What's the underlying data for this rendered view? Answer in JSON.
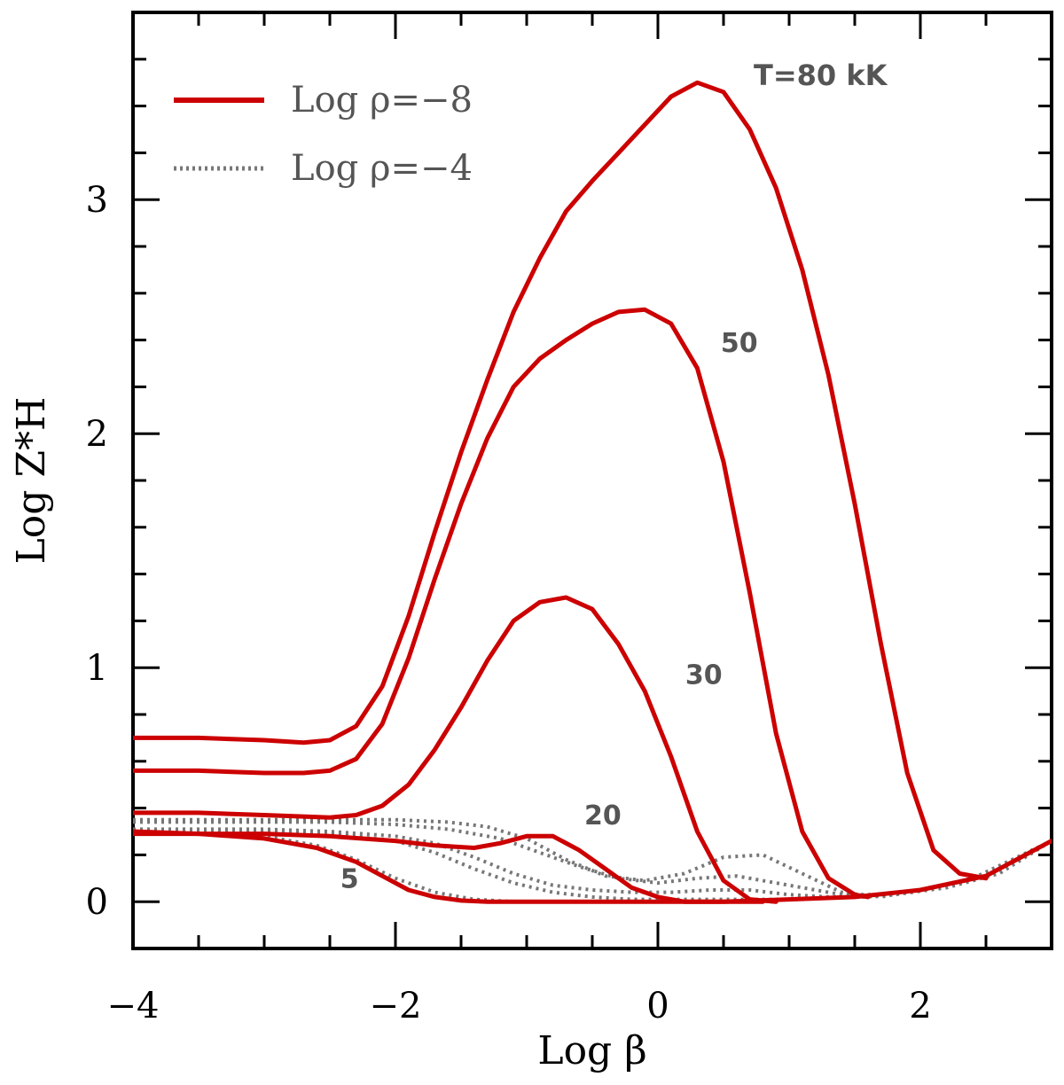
{
  "chart_data": {
    "type": "line",
    "title": "",
    "annotation": "T=80 kK",
    "xlabel": "Log β",
    "ylabel": "Log Z*H",
    "xlim": [
      -4,
      3
    ],
    "ylim": [
      -0.2,
      3.8
    ],
    "xticks": [
      -4,
      -2,
      0,
      2
    ],
    "xtick_labels": [
      "−4",
      "−2",
      "0",
      "2"
    ],
    "yticks": [
      0,
      1,
      2,
      3
    ],
    "ytick_labels": [
      "0",
      "1",
      "2",
      "3"
    ],
    "grid": false,
    "legend_position": "top-left",
    "legend": [
      {
        "label": "Log ρ=−8",
        "style": "solid",
        "color": "#cc0000"
      },
      {
        "label": "Log ρ=−4",
        "style": "dotted",
        "color": "#777777"
      }
    ],
    "curve_labels": [
      {
        "text": "50",
        "x": 0.62,
        "y": 2.35
      },
      {
        "text": "30",
        "x": 0.35,
        "y": 0.93
      },
      {
        "text": "20",
        "x": -0.42,
        "y": 0.33
      },
      {
        "text": "5",
        "x": -2.35,
        "y": 0.06
      }
    ],
    "series": [
      {
        "name": "Log ρ=−8, T=80 kK",
        "style": "solid",
        "color": "#cc0000",
        "x": [
          -4.0,
          -3.5,
          -3.0,
          -2.7,
          -2.5,
          -2.3,
          -2.1,
          -1.9,
          -1.7,
          -1.5,
          -1.3,
          -1.1,
          -0.9,
          -0.7,
          -0.5,
          -0.3,
          -0.1,
          0.1,
          0.3,
          0.5,
          0.7,
          0.9,
          1.1,
          1.3,
          1.5,
          1.7,
          1.9,
          2.1,
          2.3,
          2.5
        ],
        "y": [
          0.7,
          0.7,
          0.69,
          0.68,
          0.69,
          0.75,
          0.92,
          1.22,
          1.58,
          1.92,
          2.23,
          2.52,
          2.75,
          2.95,
          3.08,
          3.2,
          3.32,
          3.44,
          3.5,
          3.46,
          3.3,
          3.05,
          2.7,
          2.25,
          1.7,
          1.1,
          0.55,
          0.22,
          0.12,
          0.1
        ]
      },
      {
        "name": "Log ρ=−8, T=50 kK",
        "style": "solid",
        "color": "#cc0000",
        "x": [
          -4.0,
          -3.5,
          -3.0,
          -2.7,
          -2.5,
          -2.3,
          -2.1,
          -1.9,
          -1.7,
          -1.5,
          -1.3,
          -1.1,
          -0.9,
          -0.7,
          -0.5,
          -0.3,
          -0.1,
          0.1,
          0.3,
          0.5,
          0.7,
          0.9,
          1.1,
          1.3,
          1.5,
          1.6
        ],
        "y": [
          0.56,
          0.56,
          0.55,
          0.55,
          0.56,
          0.61,
          0.76,
          1.04,
          1.38,
          1.7,
          1.98,
          2.2,
          2.32,
          2.4,
          2.47,
          2.52,
          2.53,
          2.47,
          2.28,
          1.88,
          1.32,
          0.72,
          0.3,
          0.1,
          0.03,
          0.02
        ]
      },
      {
        "name": "Log ρ=−8, T=30 kK",
        "style": "solid",
        "color": "#cc0000",
        "x": [
          -4.0,
          -3.5,
          -3.0,
          -2.5,
          -2.3,
          -2.1,
          -1.9,
          -1.7,
          -1.5,
          -1.3,
          -1.1,
          -0.9,
          -0.7,
          -0.5,
          -0.3,
          -0.1,
          0.1,
          0.3,
          0.5,
          0.7,
          0.9
        ],
        "y": [
          0.38,
          0.38,
          0.37,
          0.36,
          0.37,
          0.41,
          0.5,
          0.65,
          0.83,
          1.03,
          1.2,
          1.28,
          1.3,
          1.25,
          1.1,
          0.9,
          0.62,
          0.3,
          0.09,
          0.01,
          0.0
        ]
      },
      {
        "name": "Log ρ=−8, T=20 kK",
        "style": "solid",
        "color": "#cc0000",
        "x": [
          -4.0,
          -3.5,
          -3.0,
          -2.5,
          -2.0,
          -1.7,
          -1.4,
          -1.2,
          -1.0,
          -0.8,
          -0.6,
          -0.4,
          -0.2,
          0.0,
          0.2,
          0.4,
          0.6,
          0.8
        ],
        "y": [
          0.29,
          0.29,
          0.29,
          0.28,
          0.26,
          0.24,
          0.23,
          0.25,
          0.28,
          0.28,
          0.22,
          0.14,
          0.06,
          0.02,
          0.0,
          0.0,
          0.0,
          0.0
        ]
      },
      {
        "name": "Log ρ=−8, T=5 kK",
        "style": "solid",
        "color": "#cc0000",
        "x": [
          -4.0,
          -3.5,
          -3.0,
          -2.6,
          -2.3,
          -2.1,
          -1.9,
          -1.7,
          -1.5,
          -1.3,
          -1.1,
          -0.8,
          -0.5,
          0.0,
          0.5,
          1.0,
          1.5,
          2.0,
          2.5,
          3.0
        ],
        "y": [
          0.3,
          0.29,
          0.27,
          0.23,
          0.17,
          0.11,
          0.05,
          0.02,
          0.005,
          0.0,
          0.0,
          0.0,
          0.0,
          0.0,
          0.0,
          0.01,
          0.02,
          0.05,
          0.11,
          0.26
        ]
      },
      {
        "name": "Log ρ=−4, curve 1",
        "style": "dotted",
        "color": "#777777",
        "x": [
          -4.0,
          -3.0,
          -2.5,
          -2.0,
          -1.6,
          -1.2,
          -0.9,
          -0.6,
          -0.3,
          0.0,
          0.3,
          0.6,
          1.0,
          1.4,
          1.8,
          2.2,
          2.6,
          3.0
        ],
        "y": [
          0.34,
          0.34,
          0.34,
          0.33,
          0.31,
          0.27,
          0.21,
          0.15,
          0.1,
          0.08,
          0.1,
          0.11,
          0.07,
          0.03,
          0.03,
          0.06,
          0.12,
          0.26
        ]
      },
      {
        "name": "Log ρ=−4, curve 2",
        "style": "dotted",
        "color": "#777777",
        "x": [
          -4.0,
          -3.0,
          -2.5,
          -2.0,
          -1.6,
          -1.3,
          -1.0,
          -0.7,
          -0.4,
          -0.1,
          0.2,
          0.5,
          0.8,
          1.1,
          1.4,
          1.7,
          2.0,
          2.4,
          3.0
        ],
        "y": [
          0.35,
          0.35,
          0.35,
          0.35,
          0.34,
          0.32,
          0.27,
          0.18,
          0.11,
          0.09,
          0.12,
          0.19,
          0.2,
          0.12,
          0.04,
          0.02,
          0.05,
          0.1,
          0.26
        ]
      },
      {
        "name": "Log ρ=−4, curve 3",
        "style": "dotted",
        "color": "#777777",
        "x": [
          -4.0,
          -3.0,
          -2.5,
          -2.0,
          -1.7,
          -1.4,
          -1.1,
          -0.8,
          -0.5,
          -0.2,
          0.1,
          0.4,
          0.7,
          1.0,
          1.3,
          1.6,
          2.0,
          2.5,
          3.0
        ],
        "y": [
          0.31,
          0.31,
          0.3,
          0.28,
          0.25,
          0.19,
          0.12,
          0.07,
          0.05,
          0.04,
          0.04,
          0.05,
          0.05,
          0.03,
          0.02,
          0.02,
          0.05,
          0.11,
          0.26
        ]
      },
      {
        "name": "Log ρ=−4, curve 4",
        "style": "dotted",
        "color": "#777777",
        "x": [
          -4.0,
          -3.0,
          -2.5,
          -2.0,
          -1.7,
          -1.4,
          -1.1,
          -0.8,
          -0.5,
          -0.2,
          0.2,
          0.6,
          1.0,
          1.5,
          2.0,
          2.5,
          3.0
        ],
        "y": [
          0.3,
          0.3,
          0.29,
          0.26,
          0.21,
          0.14,
          0.08,
          0.04,
          0.02,
          0.01,
          0.01,
          0.01,
          0.01,
          0.02,
          0.05,
          0.11,
          0.26
        ]
      },
      {
        "name": "Log ρ=−4, curve 5",
        "style": "dotted",
        "color": "#777777",
        "x": [
          -4.0,
          -3.0,
          -2.6,
          -2.3,
          -2.0,
          -1.7,
          -1.4,
          -1.1,
          -0.8,
          -0.5,
          0.0,
          0.5,
          1.0,
          1.5,
          2.0,
          2.5,
          3.0
        ],
        "y": [
          0.3,
          0.28,
          0.24,
          0.18,
          0.1,
          0.04,
          0.01,
          0.0,
          0.0,
          0.0,
          0.0,
          0.0,
          0.01,
          0.02,
          0.05,
          0.11,
          0.26
        ]
      }
    ]
  }
}
